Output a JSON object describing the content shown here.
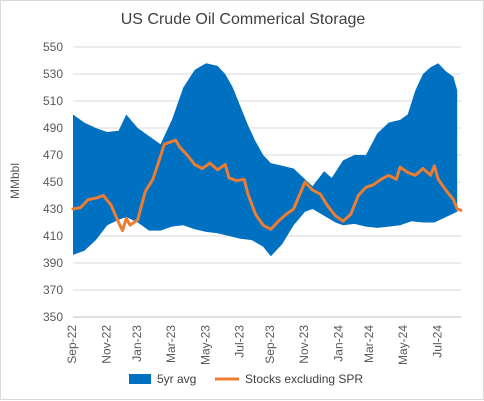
{
  "chart_data": {
    "type": "area+line",
    "title": "US Crude Oil Commerical Storage",
    "ylabel": "MMbbl",
    "xlabel": "",
    "ylim": [
      350,
      550
    ],
    "yticks": [
      "350",
      "370",
      "390",
      "410",
      "430",
      "450",
      "470",
      "490",
      "510",
      "530",
      "550"
    ],
    "x_tick_labels": [
      "Sep-22",
      "Nov-22",
      "Jan-23",
      "Mar-23",
      "May-23",
      "Jul-23",
      "Sep-23",
      "Nov-23",
      "Jan-24",
      "Mar-24",
      "May-24",
      "Jul-24"
    ],
    "x_tick_weeks": [
      0,
      9,
      17,
      26,
      35,
      44,
      52,
      61,
      70,
      78,
      87,
      96
    ],
    "weeks_total": 102,
    "band_low": [
      [
        0,
        396
      ],
      [
        3,
        399
      ],
      [
        6,
        407
      ],
      [
        9,
        418
      ],
      [
        12,
        422
      ],
      [
        14,
        424
      ],
      [
        17,
        420
      ],
      [
        20,
        414
      ],
      [
        23,
        414
      ],
      [
        26,
        417
      ],
      [
        29,
        418
      ],
      [
        32,
        415
      ],
      [
        35,
        413
      ],
      [
        38,
        412
      ],
      [
        41,
        410
      ],
      [
        44,
        408
      ],
      [
        47,
        407
      ],
      [
        50,
        402
      ],
      [
        52,
        395
      ],
      [
        55,
        404
      ],
      [
        58,
        418
      ],
      [
        61,
        428
      ],
      [
        63,
        430
      ],
      [
        66,
        425
      ],
      [
        69,
        420
      ],
      [
        71,
        418
      ],
      [
        74,
        419
      ],
      [
        77,
        417
      ],
      [
        80,
        416
      ],
      [
        83,
        417
      ],
      [
        86,
        418
      ],
      [
        89,
        421
      ],
      [
        92,
        420
      ],
      [
        95,
        420
      ],
      [
        98,
        424
      ],
      [
        101,
        428
      ]
    ],
    "band_high": [
      [
        0,
        500
      ],
      [
        3,
        494
      ],
      [
        6,
        490
      ],
      [
        9,
        487
      ],
      [
        12,
        488
      ],
      [
        14,
        500
      ],
      [
        17,
        490
      ],
      [
        20,
        484
      ],
      [
        23,
        478
      ],
      [
        26,
        496
      ],
      [
        29,
        520
      ],
      [
        32,
        533
      ],
      [
        35,
        538
      ],
      [
        38,
        536
      ],
      [
        40,
        530
      ],
      [
        42,
        520
      ],
      [
        44,
        506
      ],
      [
        46,
        492
      ],
      [
        48,
        480
      ],
      [
        50,
        470
      ],
      [
        52,
        464
      ],
      [
        55,
        462
      ],
      [
        58,
        460
      ],
      [
        61,
        452
      ],
      [
        63,
        447
      ],
      [
        66,
        458
      ],
      [
        68,
        453
      ],
      [
        71,
        466
      ],
      [
        74,
        470
      ],
      [
        77,
        470
      ],
      [
        80,
        486
      ],
      [
        83,
        494
      ],
      [
        86,
        496
      ],
      [
        88,
        500
      ],
      [
        90,
        518
      ],
      [
        92,
        530
      ],
      [
        94,
        535
      ],
      [
        96,
        538
      ],
      [
        98,
        532
      ],
      [
        100,
        528
      ],
      [
        101,
        518
      ]
    ],
    "series": [
      {
        "name": "Stocks excluding SPR",
        "color": "#ED7D31",
        "points": [
          [
            0,
            430
          ],
          [
            2,
            431
          ],
          [
            4,
            437
          ],
          [
            6,
            438
          ],
          [
            8,
            440
          ],
          [
            10,
            433
          ],
          [
            12,
            420
          ],
          [
            13,
            414
          ],
          [
            14,
            423
          ],
          [
            15,
            418
          ],
          [
            17,
            422
          ],
          [
            19,
            443
          ],
          [
            21,
            452
          ],
          [
            23,
            469
          ],
          [
            24,
            478
          ],
          [
            26,
            480
          ],
          [
            27,
            481
          ],
          [
            28,
            476
          ],
          [
            30,
            470
          ],
          [
            32,
            463
          ],
          [
            34,
            460
          ],
          [
            36,
            464
          ],
          [
            38,
            459
          ],
          [
            40,
            463
          ],
          [
            41,
            453
          ],
          [
            43,
            451
          ],
          [
            45,
            452
          ],
          [
            46,
            441
          ],
          [
            48,
            426
          ],
          [
            50,
            418
          ],
          [
            52,
            415
          ],
          [
            54,
            421
          ],
          [
            56,
            426
          ],
          [
            58,
            430
          ],
          [
            61,
            450
          ],
          [
            63,
            444
          ],
          [
            65,
            441
          ],
          [
            67,
            432
          ],
          [
            69,
            425
          ],
          [
            71,
            421
          ],
          [
            73,
            426
          ],
          [
            75,
            440
          ],
          [
            77,
            446
          ],
          [
            79,
            448
          ],
          [
            81,
            452
          ],
          [
            83,
            455
          ],
          [
            85,
            452
          ],
          [
            86,
            461
          ],
          [
            88,
            457
          ],
          [
            90,
            455
          ],
          [
            92,
            460
          ],
          [
            94,
            455
          ],
          [
            95,
            462
          ],
          [
            96,
            452
          ],
          [
            98,
            444
          ],
          [
            100,
            437
          ],
          [
            101,
            430
          ],
          [
            102,
            429
          ]
        ]
      }
    ],
    "legend": [
      {
        "label": "5yr avg",
        "color": "#0070C0",
        "kind": "band"
      },
      {
        "label": "Stocks excluding SPR",
        "color": "#ED7D31",
        "kind": "line"
      }
    ],
    "legend_position": "bottom",
    "grid": "horizontal"
  }
}
